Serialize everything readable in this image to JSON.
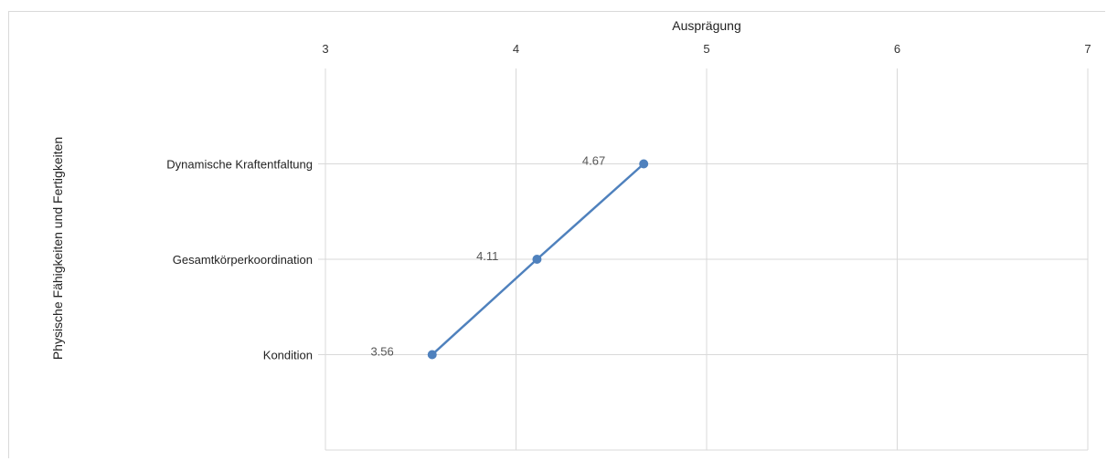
{
  "chart_data": {
    "type": "line",
    "orientation": "horizontal",
    "xlabel": "Ausprägung",
    "ylabel": "Physische Fähigkeiten und Fertigkeiten",
    "xlim": [
      3,
      7
    ],
    "x_ticks": [
      "3",
      "4",
      "5",
      "6",
      "7"
    ],
    "x_axis_position": "top",
    "grid": true,
    "legend": "none",
    "categories": [
      "Dynamische Kraftentfaltung",
      "Gesamtkörperkoordination",
      "Kondition"
    ],
    "series": [
      {
        "values": [
          4.67,
          4.11,
          3.56
        ],
        "labels": [
          "4.67",
          "4.11",
          "3.56"
        ]
      }
    ],
    "colors": {
      "series": "#4f81bd",
      "grid": "#d9d9d9"
    }
  }
}
